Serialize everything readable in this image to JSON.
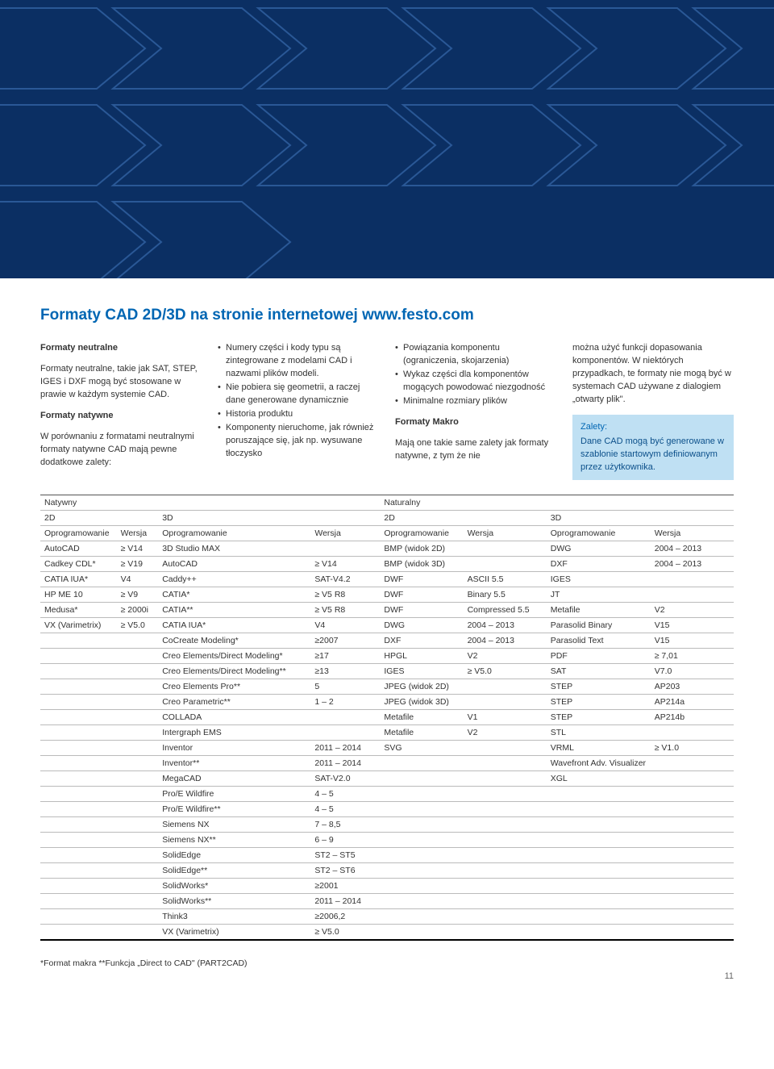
{
  "hero": {
    "bg_color": "#0b2f63",
    "chevron_stroke": "#2a5896",
    "chevron_stroke_width": 2
  },
  "title": "Formaty CAD 2D/3D na stronie internetowej www.festo.com",
  "col1": {
    "h1": "Formaty neutralne",
    "p1": "Formaty neutralne, takie jak SAT, STEP, IGES i DXF mogą być stosowane w prawie w każdym systemie CAD.",
    "h2": "Formaty natywne",
    "p2": "W porównaniu z formatami neutralnymi formaty natywne CAD mają pewne dodatkowe zalety:"
  },
  "col2": {
    "b1": "Numery części i kody typu są zintegrowane z modelami CAD i nazwami plików modeli.",
    "b2": "Nie pobiera się geometrii, a raczej dane generowane dynamicznie",
    "b3": "Historia produktu",
    "b4": "Komponenty nieruchome, jak również poruszające się, jak np. wysuwane tłoczysko"
  },
  "col3": {
    "b1": "Powiązania komponentu (ograniczenia, skojarzenia)",
    "b2": "Wykaz części dla komponentów mogących powodować niezgodność",
    "b3": "Minimalne rozmiary plików",
    "h1": "Formaty Makro",
    "p1": "Mają one takie same zalety jak formaty natywne, z tym że nie"
  },
  "col4": {
    "p1": "można użyć funkcji dopasowania komponentów. W niektórych przypadkach, te formaty nie mogą być w systemach CAD używane z dialogiem „otwarty plik\".",
    "zhead": "Zalety:",
    "zbody": "Dane CAD mogą być generowane w szablonie startowym definiowanym przez użytkownika."
  },
  "table": {
    "groups": [
      "Natywny",
      "Naturalny"
    ],
    "subgroups": [
      "2D",
      "3D",
      "2D",
      "3D"
    ],
    "headers": [
      "Oprogramowanie",
      "Wersja",
      "Oprogramowanie",
      "Wersja",
      "Oprogramowanie",
      "Wersja",
      "Oprogramowanie",
      "Wersja"
    ],
    "rows": [
      [
        "AutoCAD",
        "≥ V14",
        "3D Studio MAX",
        "",
        "BMP (widok 2D)",
        "",
        "DWG",
        "2004 – 2013"
      ],
      [
        "Cadkey CDL*",
        "≥ V19",
        "AutoCAD",
        "≥ V14",
        "BMP (widok 3D)",
        "",
        "DXF",
        "2004 – 2013"
      ],
      [
        "CATIA IUA*",
        "V4",
        "Caddy++",
        "SAT-V4.2",
        "DWF",
        "ASCII 5.5",
        "IGES",
        ""
      ],
      [
        "HP ME 10",
        "≥ V9",
        "CATIA*",
        "≥ V5 R8",
        "DWF",
        "Binary 5.5",
        "JT",
        ""
      ],
      [
        "Medusa*",
        "≥ 2000i",
        "CATIA**",
        "≥ V5 R8",
        "DWF",
        "Compressed 5.5",
        "Metafile",
        "V2"
      ],
      [
        "VX (Varimetrix)",
        "≥ V5.0",
        "CATIA IUA*",
        "V4",
        "DWG",
        "2004 – 2013",
        "Parasolid Binary",
        "V15"
      ],
      [
        "",
        "",
        "CoCreate Modeling*",
        "≥2007",
        "DXF",
        "2004 – 2013",
        "Parasolid Text",
        "V15"
      ],
      [
        "",
        "",
        "Creo Elements/Direct Modeling*",
        "≥17",
        "HPGL",
        "V2",
        "PDF",
        "≥ 7,01"
      ],
      [
        "",
        "",
        "Creo Elements/Direct Modeling**",
        "≥13",
        "IGES",
        "≥ V5.0",
        "SAT",
        "V7.0"
      ],
      [
        "",
        "",
        "Creo Elements Pro**",
        "5",
        "JPEG (widok 2D)",
        "",
        "STEP",
        "AP203"
      ],
      [
        "",
        "",
        "Creo Parametric**",
        "1 – 2",
        "JPEG (widok 3D)",
        "",
        "STEP",
        "AP214a"
      ],
      [
        "",
        "",
        "COLLADA",
        "",
        "Metafile",
        "V1",
        "STEP",
        "AP214b"
      ],
      [
        "",
        "",
        "Intergraph EMS",
        "",
        "Metafile",
        "V2",
        "STL",
        ""
      ],
      [
        "",
        "",
        "Inventor",
        "2011 – 2014",
        "SVG",
        "",
        "VRML",
        "≥ V1.0"
      ],
      [
        "",
        "",
        "Inventor**",
        "2011 – 2014",
        "",
        "",
        "Wavefront Adv. Visualizer",
        ""
      ],
      [
        "",
        "",
        "MegaCAD",
        "SAT-V2.0",
        "",
        "",
        "XGL",
        ""
      ],
      [
        "",
        "",
        "Pro/E Wildfire",
        "4 – 5",
        "",
        "",
        "",
        ""
      ],
      [
        "",
        "",
        "Pro/E Wildfire**",
        "4 – 5",
        "",
        "",
        "",
        ""
      ],
      [
        "",
        "",
        "Siemens NX",
        "7 – 8,5",
        "",
        "",
        "",
        ""
      ],
      [
        "",
        "",
        "Siemens NX**",
        "6 – 9",
        "",
        "",
        "",
        ""
      ],
      [
        "",
        "",
        "SolidEdge",
        "ST2 – ST5",
        "",
        "",
        "",
        ""
      ],
      [
        "",
        "",
        "SolidEdge**",
        "ST2 – ST6",
        "",
        "",
        "",
        ""
      ],
      [
        "",
        "",
        "SolidWorks*",
        "≥2001",
        "",
        "",
        "",
        ""
      ],
      [
        "",
        "",
        "SolidWorks**",
        "2011 – 2014",
        "",
        "",
        "",
        ""
      ],
      [
        "",
        "",
        "Think3",
        "≥2006,2",
        "",
        "",
        "",
        ""
      ],
      [
        "",
        "",
        "VX (Varimetrix)",
        "≥ V5.0",
        "",
        "",
        "",
        ""
      ]
    ]
  },
  "footnote": "*Format makra **Funkcja „Direct to CAD\" (PART2CAD)",
  "pagenum": "11"
}
